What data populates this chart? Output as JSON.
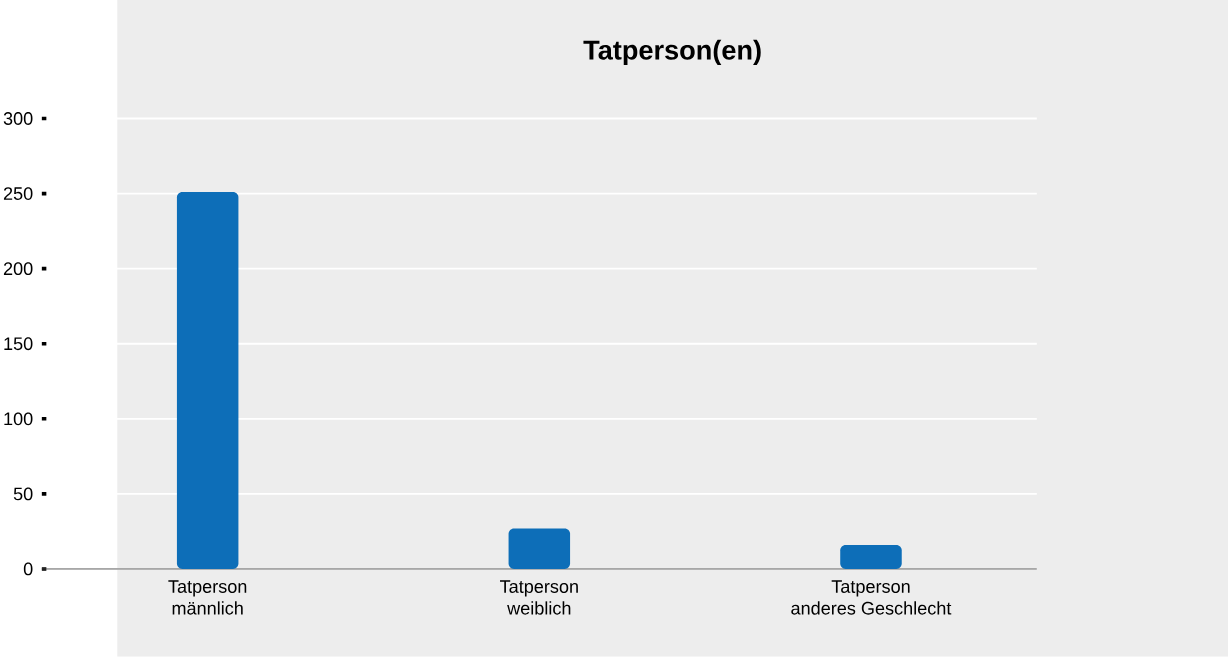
{
  "chart_data": {
    "type": "bar",
    "title": "Tatperson(en)",
    "categories": [
      "Tatperson\nmännlich",
      "Tatperson\nweiblich",
      "Tatperson\nanderes Geschlecht"
    ],
    "values": [
      251,
      27,
      16
    ],
    "color": "#0d6eb8",
    "ylim": [
      0,
      300
    ],
    "yticks": [
      0,
      50,
      100,
      150,
      200,
      250,
      300
    ],
    "grid": "y"
  }
}
